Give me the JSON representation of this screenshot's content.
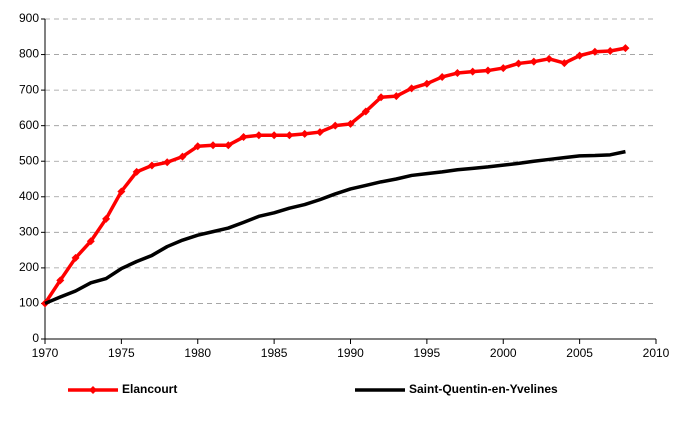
{
  "chart_data": {
    "type": "line",
    "x": [
      1970,
      1971,
      1972,
      1973,
      1974,
      1975,
      1976,
      1977,
      1978,
      1979,
      1980,
      1981,
      1982,
      1983,
      1984,
      1985,
      1986,
      1987,
      1988,
      1989,
      1990,
      1991,
      1992,
      1993,
      1994,
      1995,
      1996,
      1997,
      1998,
      1999,
      2000,
      2001,
      2002,
      2003,
      2004,
      2005,
      2006,
      2007,
      2008
    ],
    "series": [
      {
        "name": "Elancourt",
        "color": "#ff0000",
        "marker": "diamond",
        "values": [
          100,
          165,
          228,
          275,
          338,
          415,
          470,
          488,
          497,
          513,
          542,
          545,
          545,
          568,
          573,
          573,
          573,
          577,
          582,
          600,
          605,
          640,
          680,
          683,
          705,
          718,
          737,
          748,
          752,
          755,
          762,
          775,
          780,
          788,
          776,
          797,
          808,
          810,
          818
        ]
      },
      {
        "name": "Saint-Quentin-en-Yvelines",
        "color": "#000000",
        "values": [
          100,
          118,
          135,
          158,
          170,
          198,
          218,
          235,
          260,
          278,
          292,
          302,
          312,
          328,
          345,
          355,
          368,
          378,
          392,
          408,
          422,
          432,
          442,
          450,
          460,
          465,
          470,
          476,
          480,
          484,
          489,
          494,
          500,
          505,
          510,
          515,
          516,
          518,
          527
        ]
      }
    ],
    "xlim": [
      1970,
      2010
    ],
    "xticks": [
      1970,
      1975,
      1980,
      1985,
      1990,
      1995,
      2000,
      2005,
      2010
    ],
    "ylim": [
      0,
      900
    ],
    "yticks": [
      0,
      100,
      200,
      300,
      400,
      500,
      600,
      700,
      800,
      900
    ],
    "grid": true,
    "legend": "bottom"
  }
}
